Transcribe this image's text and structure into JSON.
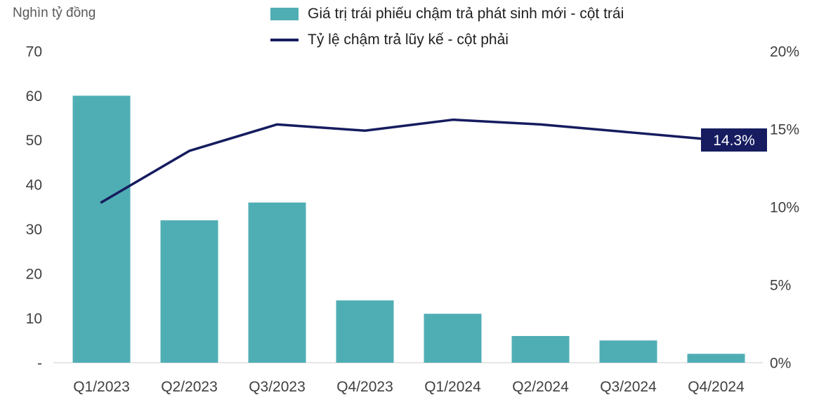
{
  "chart_data": {
    "type": "combo",
    "categories": [
      "Q1/2023",
      "Q2/2023",
      "Q3/2023",
      "Q4/2023",
      "Q1/2024",
      "Q2/2024",
      "Q3/2024",
      "Q4/2024"
    ],
    "series": [
      {
        "name": "Giá trị trái phiếu chậm trả phát sinh mới - cột trái",
        "type": "bar",
        "axis": "left",
        "color": "#4FAEB4",
        "values": [
          60,
          32,
          36,
          14,
          11,
          6,
          5,
          2
        ]
      },
      {
        "name": "Tỷ lệ chậm trả lũy kế - cột phải",
        "type": "line",
        "axis": "right",
        "color": "#161C5F",
        "values": [
          10.3,
          13.6,
          15.3,
          14.9,
          15.6,
          15.3,
          14.8,
          14.3
        ]
      }
    ],
    "left_axis": {
      "title": "Nghìn tỷ đồng",
      "min": 0,
      "max": 70,
      "ticks": [
        {
          "label": "70",
          "value": 70
        },
        {
          "label": "60",
          "value": 60
        },
        {
          "label": "50",
          "value": 50
        },
        {
          "label": "40",
          "value": 40
        },
        {
          "label": "30",
          "value": 30
        },
        {
          "label": "20",
          "value": 20
        },
        {
          "label": "10",
          "value": 10
        },
        {
          "label": "-",
          "value": 0
        }
      ]
    },
    "right_axis": {
      "min": 0,
      "max": 20,
      "ticks": [
        {
          "label": "20%",
          "value": 20
        },
        {
          "label": "15%",
          "value": 15
        },
        {
          "label": "10%",
          "value": 10
        },
        {
          "label": "5%",
          "value": 5
        },
        {
          "label": "0%",
          "value": 0
        }
      ]
    },
    "annotation": {
      "label": "14.3%",
      "bg": "#161C5F",
      "color": "#FFFFFF"
    },
    "legend_position": "top",
    "grid": "off",
    "background": "#FFFFFF"
  }
}
